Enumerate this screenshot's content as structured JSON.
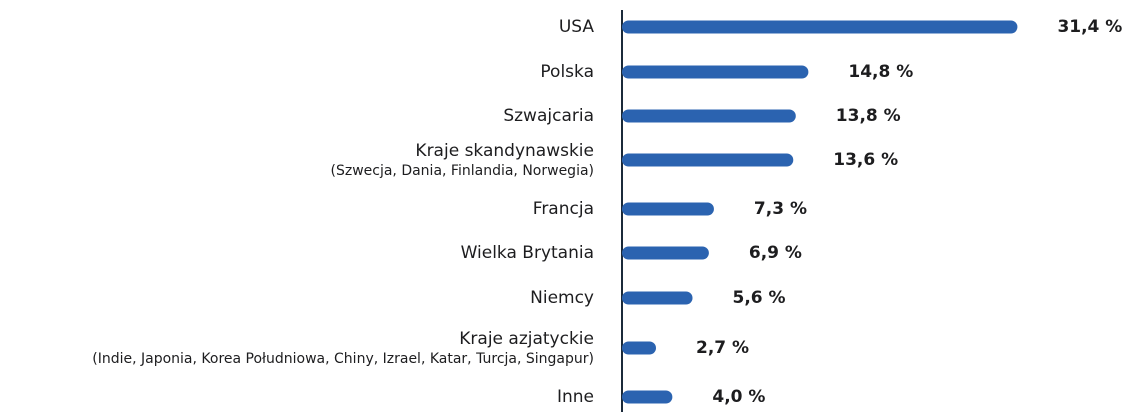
{
  "chart_data": {
    "type": "bar",
    "orientation": "horizontal",
    "categories": [
      "USA",
      "Polska",
      "Szwajcaria",
      "Kraje skandynawskie",
      "Francja",
      "Wielka Brytania",
      "Niemcy",
      "Kraje azjatyckie",
      "Inne"
    ],
    "category_notes": {
      "3": "(Szwecja, Dania, Finlandia, Norwegia)",
      "7": "(Indie, Japonia, Korea Południowa, Chiny, Izrael, Katar, Turcja, Singapur)"
    },
    "values": [
      31.4,
      14.8,
      13.8,
      13.6,
      7.3,
      6.9,
      5.6,
      2.7,
      4.0
    ],
    "value_labels": [
      "31,4 %",
      "14,8 %",
      "13,8 %",
      "13,6 %",
      "7,3 %",
      "6,9 %",
      "5,6 %",
      "2,7 %",
      "4,0 %"
    ],
    "color": "#2b63b0",
    "xlim": [
      0,
      32
    ]
  }
}
